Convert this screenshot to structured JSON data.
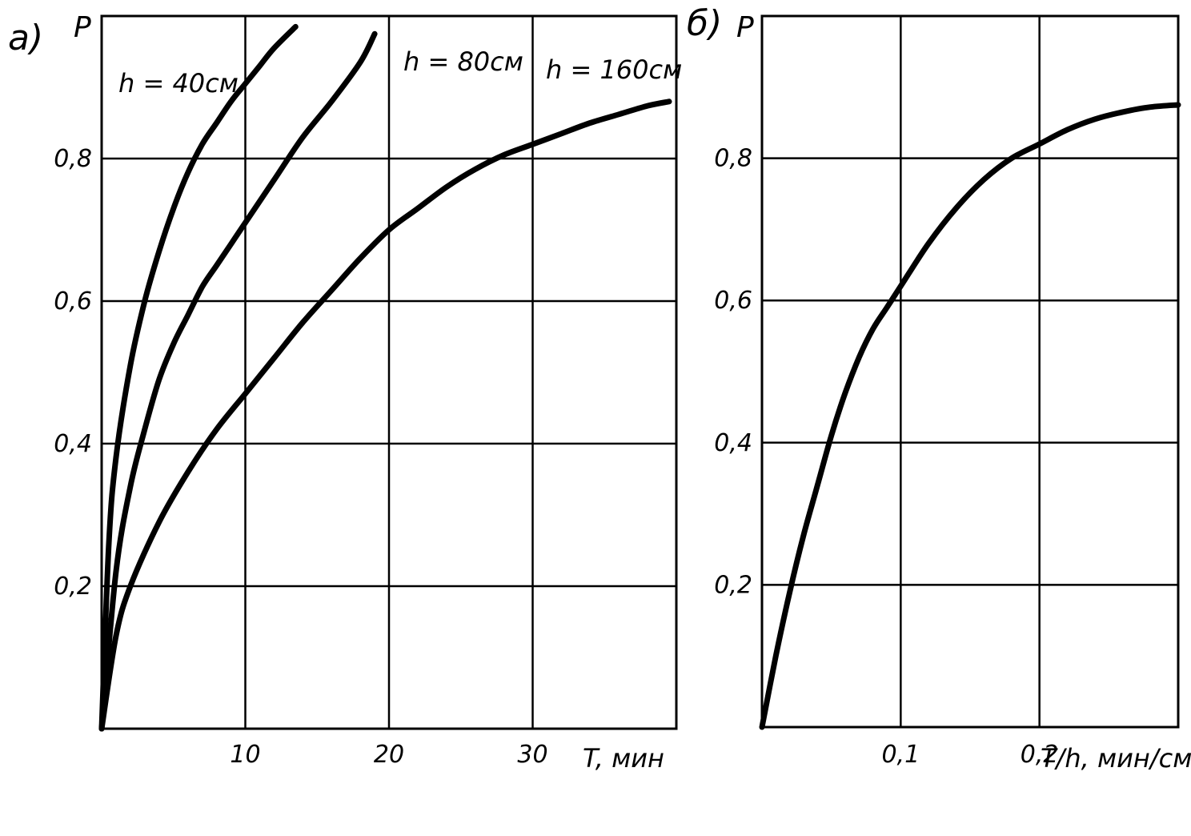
{
  "chart_data": [
    {
      "panel_label": "a)",
      "type": "line",
      "ylabel": "P",
      "xlabel": "T, мин",
      "xlim": [
        0,
        40
      ],
      "ylim": [
        0,
        1.0
      ],
      "x_ticks": [
        10,
        20,
        30
      ],
      "x_tick_labels": [
        "10",
        "20",
        "30"
      ],
      "y_ticks": [
        0.2,
        0.4,
        0.6,
        0.8
      ],
      "y_tick_labels": [
        "0,2",
        "0,4",
        "0,6",
        "0,8"
      ],
      "grid": true,
      "series": [
        {
          "name": "h = 40см",
          "x": [
            0,
            0.5,
            1,
            2,
            3,
            4,
            5,
            6,
            7,
            8,
            9,
            10,
            11,
            12,
            13.5
          ],
          "y": [
            0,
            0.26,
            0.38,
            0.51,
            0.6,
            0.67,
            0.73,
            0.78,
            0.82,
            0.85,
            0.88,
            0.905,
            0.93,
            0.955,
            0.985
          ]
        },
        {
          "name": "h = 80см",
          "x": [
            0,
            1,
            2,
            3,
            4,
            5,
            6,
            7,
            8,
            9,
            10,
            12,
            14,
            16,
            18,
            19
          ],
          "y": [
            0,
            0.22,
            0.34,
            0.42,
            0.49,
            0.54,
            0.58,
            0.62,
            0.65,
            0.68,
            0.71,
            0.77,
            0.83,
            0.88,
            0.935,
            0.975
          ]
        },
        {
          "name": "h = 160см",
          "x": [
            0,
            1,
            2,
            4,
            6,
            8,
            10,
            12,
            14,
            16,
            18,
            20,
            22,
            24,
            26,
            28,
            30,
            32,
            34,
            36,
            38,
            39.5
          ],
          "y": [
            0,
            0.13,
            0.2,
            0.29,
            0.36,
            0.42,
            0.47,
            0.52,
            0.57,
            0.615,
            0.66,
            0.7,
            0.73,
            0.76,
            0.785,
            0.805,
            0.82,
            0.835,
            0.85,
            0.862,
            0.874,
            0.88
          ]
        }
      ],
      "annotations": [
        "h = 40см",
        "h = 80см",
        "h = 160см"
      ]
    },
    {
      "panel_label": "б)",
      "type": "line",
      "ylabel": "P",
      "xlabel": "T/h, мин/см",
      "xlim": [
        0,
        0.3
      ],
      "ylim": [
        0,
        1.0
      ],
      "x_ticks": [
        0.1,
        0.2
      ],
      "x_tick_labels": [
        "0,1",
        "0,2"
      ],
      "y_ticks": [
        0.2,
        0.4,
        0.6,
        0.8
      ],
      "y_tick_labels": [
        "0,2",
        "0,4",
        "0,6",
        "0,8"
      ],
      "grid": true,
      "series": [
        {
          "x": [
            0,
            0.01,
            0.02,
            0.03,
            0.04,
            0.05,
            0.06,
            0.07,
            0.08,
            0.09,
            0.1,
            0.12,
            0.14,
            0.16,
            0.18,
            0.2,
            0.22,
            0.24,
            0.26,
            0.28,
            0.3
          ],
          "y": [
            0,
            0.1,
            0.19,
            0.27,
            0.34,
            0.41,
            0.47,
            0.52,
            0.56,
            0.59,
            0.62,
            0.68,
            0.73,
            0.77,
            0.8,
            0.82,
            0.84,
            0.855,
            0.865,
            0.872,
            0.875
          ]
        }
      ]
    }
  ]
}
